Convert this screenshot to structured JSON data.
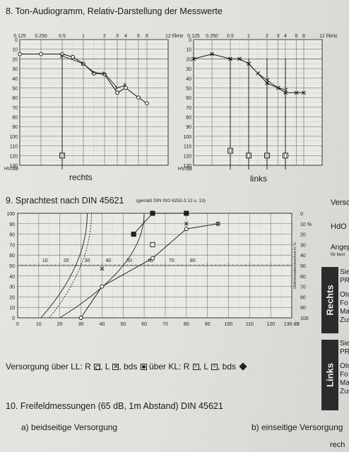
{
  "section8": {
    "title": "8. Ton-Audiogramm, Relativ-Darstellung der Messwerte",
    "freq_labels": [
      "0.125",
      "0.250",
      "0.5",
      "1",
      "2",
      "3",
      "4",
      "6",
      "8",
      "12 f/kHz"
    ],
    "y_labels": [
      "0",
      "10",
      "20",
      "30",
      "40",
      "50",
      "60",
      "70",
      "80",
      "90",
      "100",
      "110",
      "120",
      "130"
    ],
    "unit_label": "HV/dB",
    "right_label": "rechts",
    "left_label": "links"
  },
  "section9": {
    "title": "9. Sprachtest nach DIN 45621",
    "subtitle": "(gemäß DIN ISO 8253-3 12 u. 13)",
    "left_axis": [
      "100",
      "90",
      "80",
      "70",
      "60",
      "50",
      "40",
      "30",
      "20",
      "10",
      "0"
    ],
    "right_axis": [
      "0",
      "10 %",
      "20",
      "30",
      "40",
      "50",
      "60",
      "70",
      "80",
      "90",
      "100"
    ],
    "x_axis": [
      "0",
      "10",
      "20",
      "30",
      "40",
      "50",
      "60",
      "70",
      "80",
      "90",
      "100",
      "110",
      "120",
      "130 dB"
    ],
    "inner_x": [
      "10",
      "20",
      "30",
      "40",
      "50",
      "60",
      "70",
      "80"
    ],
    "right_axis_title": "Diskriminationsverlust in %"
  },
  "right_column": {
    "versorg": "Versorg",
    "hdo": "HdO",
    "angep": "Angep",
    "angep_sub": "für best",
    "rechts_tab": "Rechts",
    "links_tab": "Links",
    "rechts_lines": [
      "Sie",
      "PR",
      "Oto",
      "Fo",
      "Ma",
      "Zus"
    ],
    "links_lines": [
      "Sie",
      "PR",
      "Oto",
      "Fo",
      "Ma",
      "Zus"
    ]
  },
  "versorgung": {
    "prefix": "Versorgung über LL: R",
    "l_label": ", L",
    "bds_label": ", bds",
    "kl_label": " über KL: R",
    "kl_l_label": ", L",
    "kl_bds_label": ", bds"
  },
  "section10": {
    "title": "10. Freifeldmessungen (65 dB, 1m Abstand) DIN 45621",
    "option_a": "a) beidseitige Versorgung",
    "option_b": "b) einseitige Versorgung",
    "footer_fragment": "rech"
  },
  "chart_data": [
    {
      "type": "line",
      "panel": "rechts",
      "x": [
        "0.125",
        "0.250",
        "0.5",
        "0.75",
        "1",
        "1.5",
        "2",
        "3",
        "4",
        "6",
        "8"
      ],
      "series": [
        {
          "marker": "circle",
          "values": [
            15,
            15,
            15,
            18,
            25,
            35,
            36,
            55,
            50,
            60,
            66
          ]
        },
        {
          "marker": "arrow",
          "values": [
            null,
            null,
            17,
            null,
            25,
            34,
            35,
            50,
            47,
            null,
            null
          ]
        }
      ],
      "bone_marker_db": 120,
      "ylim": [
        0,
        130
      ]
    },
    {
      "type": "line",
      "panel": "links",
      "x": [
        "0.125",
        "0.250",
        "0.5",
        "0.75",
        "1",
        "1.5",
        "2",
        "3",
        "4",
        "6",
        "8"
      ],
      "series": [
        {
          "marker": "x",
          "values": [
            20,
            15,
            20,
            20,
            25,
            35,
            45,
            50,
            55,
            55,
            55
          ]
        },
        {
          "marker": "arrow",
          "values": [
            null,
            null,
            null,
            null,
            25,
            35,
            42,
            50,
            52,
            null,
            null
          ]
        }
      ],
      "bone_marker_db": [
        115,
        120,
        120,
        120
      ],
      "ylim": [
        0,
        130
      ]
    },
    {
      "type": "scatter",
      "panel": "Sprachtest",
      "xlim": [
        0,
        130
      ],
      "ylim": [
        0,
        100
      ],
      "series": [
        {
          "marker": "circle",
          "points": [
            [
              30,
              0
            ],
            [
              40,
              30
            ],
            [
              64,
              57
            ],
            [
              80,
              85
            ],
            [
              95,
              90
            ]
          ]
        },
        {
          "marker": "x",
          "points": [
            [
              40,
              47
            ],
            [
              80,
              90
            ],
            [
              95,
              90
            ]
          ]
        },
        {
          "marker": "filled-square",
          "points": [
            [
              55,
              80
            ],
            [
              64,
              100
            ],
            [
              80,
              100
            ]
          ]
        },
        {
          "marker": "open-square",
          "points": [
            [
              64,
              70
            ]
          ]
        }
      ]
    }
  ]
}
